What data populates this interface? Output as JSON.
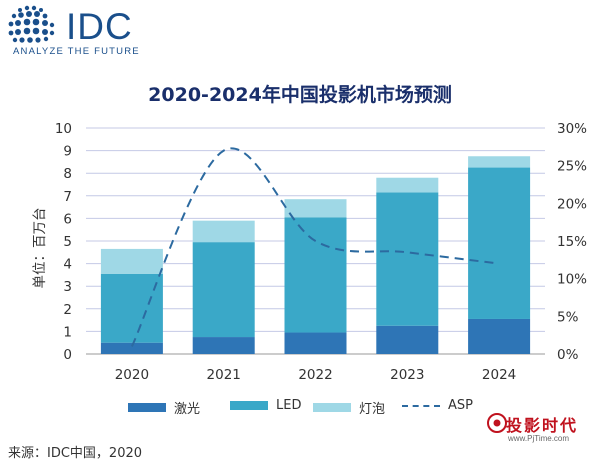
{
  "logo": {
    "brand": "IDC",
    "tagline": "ANALYZE THE FUTURE"
  },
  "chart_data": {
    "type": "bar",
    "stacked": true,
    "title": "2020-2024年中国投影机市场预测",
    "ylabel": "单位：百万台",
    "xlabel": "",
    "categories": [
      "2020",
      "2021",
      "2022",
      "2023",
      "2024"
    ],
    "ylim": [
      0,
      10
    ],
    "y_ticks": [
      "0",
      "1",
      "2",
      "3",
      "4",
      "5",
      "6",
      "7",
      "8",
      "9",
      "10"
    ],
    "y2lim": [
      0,
      30
    ],
    "y2_ticks": [
      "0%",
      "5%",
      "10%",
      "15%",
      "20%",
      "25%",
      "30%"
    ],
    "grid": true,
    "legend_position": "bottom",
    "series": [
      {
        "name": "激光",
        "values": [
          0.5,
          0.75,
          0.95,
          1.25,
          1.55
        ],
        "color": "#2e75b6"
      },
      {
        "name": "LED",
        "values": [
          3.05,
          4.2,
          5.1,
          5.9,
          6.7
        ],
        "color": "#3aa8c8"
      },
      {
        "name": "灯泡",
        "values": [
          1.1,
          0.95,
          0.8,
          0.65,
          0.5
        ],
        "color": "#9fd8e6"
      }
    ],
    "line_series": {
      "name": "ASP",
      "axis": "secondary",
      "values": [
        1.0,
        27.0,
        15.0,
        13.5,
        12.0
      ],
      "color": "#2c6aa0",
      "style": "dashed"
    }
  },
  "source": "来源：IDC中国，2020",
  "watermark": {
    "text": "投影时代",
    "url": "www.PjTime.com"
  }
}
